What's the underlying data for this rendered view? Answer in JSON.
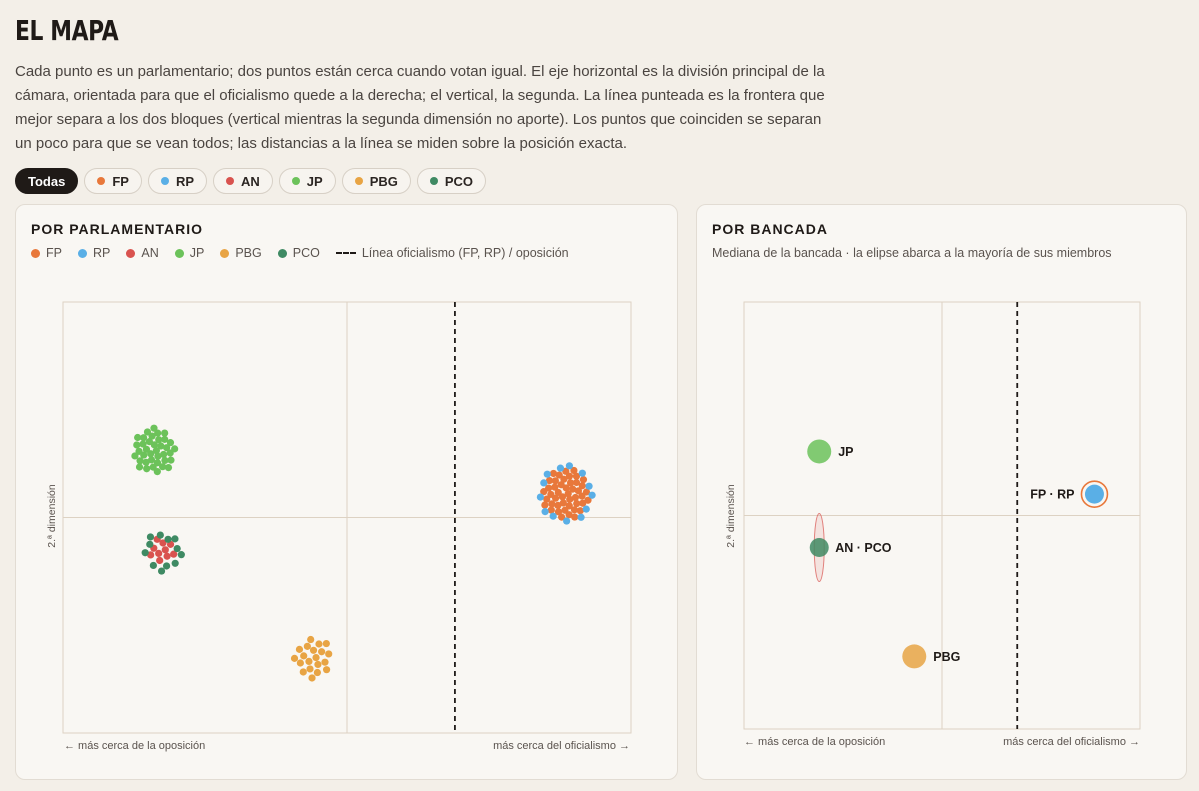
{
  "title": "EL MAPA",
  "intro": "Cada punto es un parlamentario; dos puntos están cerca cuando votan igual. El eje horizontal es la división principal de la cámara, orientada para que el oficialismo quede a la derecha; el vertical, la segunda. La línea punteada es la frontera que mejor separa a los dos bloques (vertical mientras la segunda dimensión no aporte). Los puntos que coinciden se separan un poco para que se vean todos; las distancias a la línea se miden sobre la posición exacta.",
  "filters": [
    {
      "label": "Todas",
      "active": true
    },
    {
      "label": "FP",
      "color": "#e8783b"
    },
    {
      "label": "RP",
      "color": "#5aafe6"
    },
    {
      "label": "AN",
      "color": "#d9534f"
    },
    {
      "label": "JP",
      "color": "#6cc25a"
    },
    {
      "label": "PBG",
      "color": "#e8a444"
    },
    {
      "label": "PCO",
      "color": "#3f8a63"
    }
  ],
  "left_panel": {
    "title": "POR PARLAMENTARIO",
    "legend": [
      {
        "label": "FP",
        "color": "#e8783b"
      },
      {
        "label": "RP",
        "color": "#5aafe6"
      },
      {
        "label": "AN",
        "color": "#d9534f"
      },
      {
        "label": "JP",
        "color": "#6cc25a"
      },
      {
        "label": "PBG",
        "color": "#e8a444"
      },
      {
        "label": "PCO",
        "color": "#3f8a63"
      }
    ],
    "legend_line": "Línea oficialismo (FP, RP) / oposición",
    "y_label": "2.ª dimensión",
    "x_left_note": "← más cerca de la oposición",
    "x_right_note": "más cerca del oficialismo →"
  },
  "right_panel": {
    "title": "POR BANCADA",
    "subtitle": "Mediana de la bancada · la elipse abarca a la mayoría de sus miembros",
    "y_label": "2.ª dimensión",
    "x_left_note": "← más cerca de la oposición",
    "x_right_note": "más cerca del oficialismo →"
  },
  "chart_data": [
    {
      "type": "scatter",
      "title": "POR PARLAMENTARIO",
      "ylabel": "2.ª dimensión",
      "xlim": [
        -1,
        1
      ],
      "ylim": [
        -1,
        1
      ],
      "divider_x": 0.38,
      "series": [
        {
          "name": "JP",
          "color": "#6cc25a",
          "center": [
            -0.68,
            0.31
          ],
          "count": 38
        },
        {
          "name": "AN",
          "color": "#d9534f",
          "center": [
            -0.65,
            -0.15
          ],
          "count": 10
        },
        {
          "name": "PCO",
          "color": "#3f8a63",
          "center": [
            -0.65,
            -0.16
          ],
          "count": 12
        },
        {
          "name": "PBG",
          "color": "#e8a444",
          "center": [
            -0.12,
            -0.65
          ],
          "count": 20
        },
        {
          "name": "FP",
          "color": "#e8783b",
          "center": [
            0.77,
            0.11
          ],
          "count": 46
        },
        {
          "name": "RP",
          "color": "#5aafe6",
          "center": [
            0.77,
            0.11
          ],
          "count": 13
        }
      ]
    },
    {
      "type": "scatter",
      "title": "POR BANCADA",
      "ylabel": "2.ª dimensión",
      "xlim": [
        -1,
        1
      ],
      "ylim": [
        -1,
        1
      ],
      "divider_x": 0.38,
      "points": [
        {
          "label": "JP",
          "x": -0.62,
          "y": 0.3,
          "color": "#6cc25a"
        },
        {
          "label": "AN · PCO",
          "x": -0.62,
          "y": -0.15,
          "color": "#3f8a63",
          "ellipse_color": "#d9534f"
        },
        {
          "label": "PBG",
          "x": -0.14,
          "y": -0.66,
          "color": "#e8a444"
        },
        {
          "label": "FP · RP",
          "x": 0.77,
          "y": 0.1,
          "color": "#5aafe6",
          "ring_color": "#e8783b"
        }
      ]
    }
  ]
}
